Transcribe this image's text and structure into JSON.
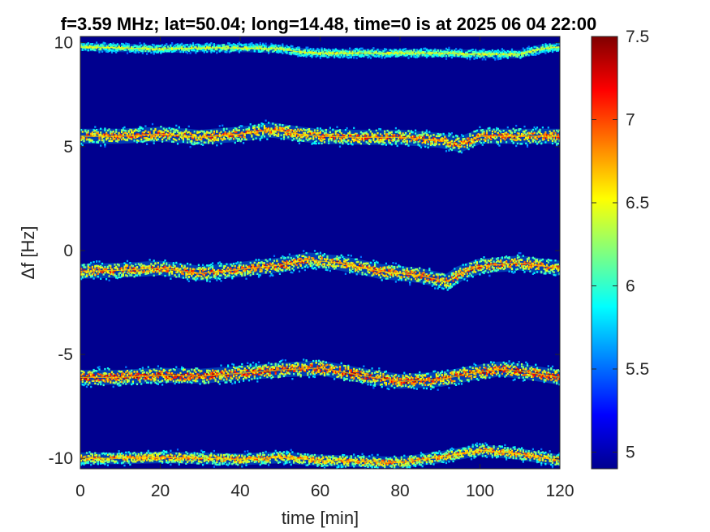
{
  "chart_data": {
    "type": "heatmap",
    "title": "f=3.59 MHz;  lat=50.04; long=14.48, time=0 is at 2025 06 04 22:00",
    "xlabel": "time [min]",
    "ylabel": "Δf [Hz]",
    "xlim": [
      0,
      120
    ],
    "ylim": [
      -10.5,
      10.3
    ],
    "xticks": [
      0,
      20,
      40,
      60,
      80,
      100,
      120
    ],
    "xtick_labels": [
      "0",
      "20",
      "40",
      "60",
      "80",
      "100",
      "120"
    ],
    "yticks": [
      10,
      5,
      0,
      -5,
      -10
    ],
    "ytick_labels": [
      "10",
      "5",
      "0",
      "-5",
      "-10"
    ],
    "colorbar": {
      "range": [
        4.9,
        7.5
      ],
      "ticks": [
        5,
        5.5,
        6,
        6.5,
        7,
        7.5
      ],
      "tick_labels": [
        "5",
        "5.5",
        "6",
        "6.5",
        "7",
        "7.5"
      ],
      "colormap": "jet",
      "background_color": "#00008f"
    },
    "traces": [
      {
        "name": "trace near +9.8 Hz",
        "points": [
          [
            0,
            9.8
          ],
          [
            10,
            9.75
          ],
          [
            20,
            9.7
          ],
          [
            30,
            9.75
          ],
          [
            40,
            9.75
          ],
          [
            50,
            9.7
          ],
          [
            55,
            9.55
          ],
          [
            60,
            9.5
          ],
          [
            70,
            9.5
          ],
          [
            80,
            9.5
          ],
          [
            90,
            9.5
          ],
          [
            100,
            9.45
          ],
          [
            110,
            9.45
          ],
          [
            115,
            9.7
          ],
          [
            120,
            9.8
          ]
        ],
        "width": 0.25,
        "strength": 0.45
      },
      {
        "name": "trace near +5.5 Hz",
        "points": [
          [
            0,
            5.5
          ],
          [
            10,
            5.5
          ],
          [
            20,
            5.6
          ],
          [
            30,
            5.45
          ],
          [
            40,
            5.6
          ],
          [
            48,
            5.8
          ],
          [
            55,
            5.6
          ],
          [
            60,
            5.5
          ],
          [
            70,
            5.45
          ],
          [
            80,
            5.45
          ],
          [
            90,
            5.3
          ],
          [
            95,
            5.1
          ],
          [
            100,
            5.5
          ],
          [
            110,
            5.5
          ],
          [
            120,
            5.5
          ]
        ],
        "width": 0.45,
        "strength": 0.75
      },
      {
        "name": "trace near -0.9 Hz",
        "points": [
          [
            0,
            -1.0
          ],
          [
            10,
            -0.95
          ],
          [
            20,
            -0.85
          ],
          [
            30,
            -1.1
          ],
          [
            38,
            -0.95
          ],
          [
            45,
            -0.8
          ],
          [
            50,
            -0.7
          ],
          [
            57,
            -0.45
          ],
          [
            65,
            -0.6
          ],
          [
            75,
            -1.0
          ],
          [
            85,
            -1.2
          ],
          [
            92,
            -1.5
          ],
          [
            95,
            -1.1
          ],
          [
            100,
            -0.75
          ],
          [
            110,
            -0.6
          ],
          [
            120,
            -0.85
          ]
        ],
        "width": 0.45,
        "strength": 0.75
      },
      {
        "name": "trace near -6 Hz",
        "points": [
          [
            0,
            -6.1
          ],
          [
            10,
            -6.1
          ],
          [
            20,
            -6.0
          ],
          [
            30,
            -6.05
          ],
          [
            40,
            -5.9
          ],
          [
            50,
            -5.75
          ],
          [
            60,
            -5.65
          ],
          [
            70,
            -6.0
          ],
          [
            80,
            -6.3
          ],
          [
            90,
            -6.2
          ],
          [
            98,
            -5.9
          ],
          [
            105,
            -5.7
          ],
          [
            110,
            -5.8
          ],
          [
            120,
            -6.1
          ]
        ],
        "width": 0.45,
        "strength": 0.85
      },
      {
        "name": "trace near -10 Hz",
        "points": [
          [
            0,
            -10.0
          ],
          [
            10,
            -10.0
          ],
          [
            20,
            -9.95
          ],
          [
            30,
            -10.0
          ],
          [
            40,
            -10.05
          ],
          [
            50,
            -9.95
          ],
          [
            60,
            -10.1
          ],
          [
            70,
            -10.15
          ],
          [
            80,
            -10.2
          ],
          [
            90,
            -9.95
          ],
          [
            100,
            -9.6
          ],
          [
            110,
            -9.8
          ],
          [
            120,
            -10.1
          ]
        ],
        "width": 0.35,
        "strength": 0.7
      }
    ]
  }
}
